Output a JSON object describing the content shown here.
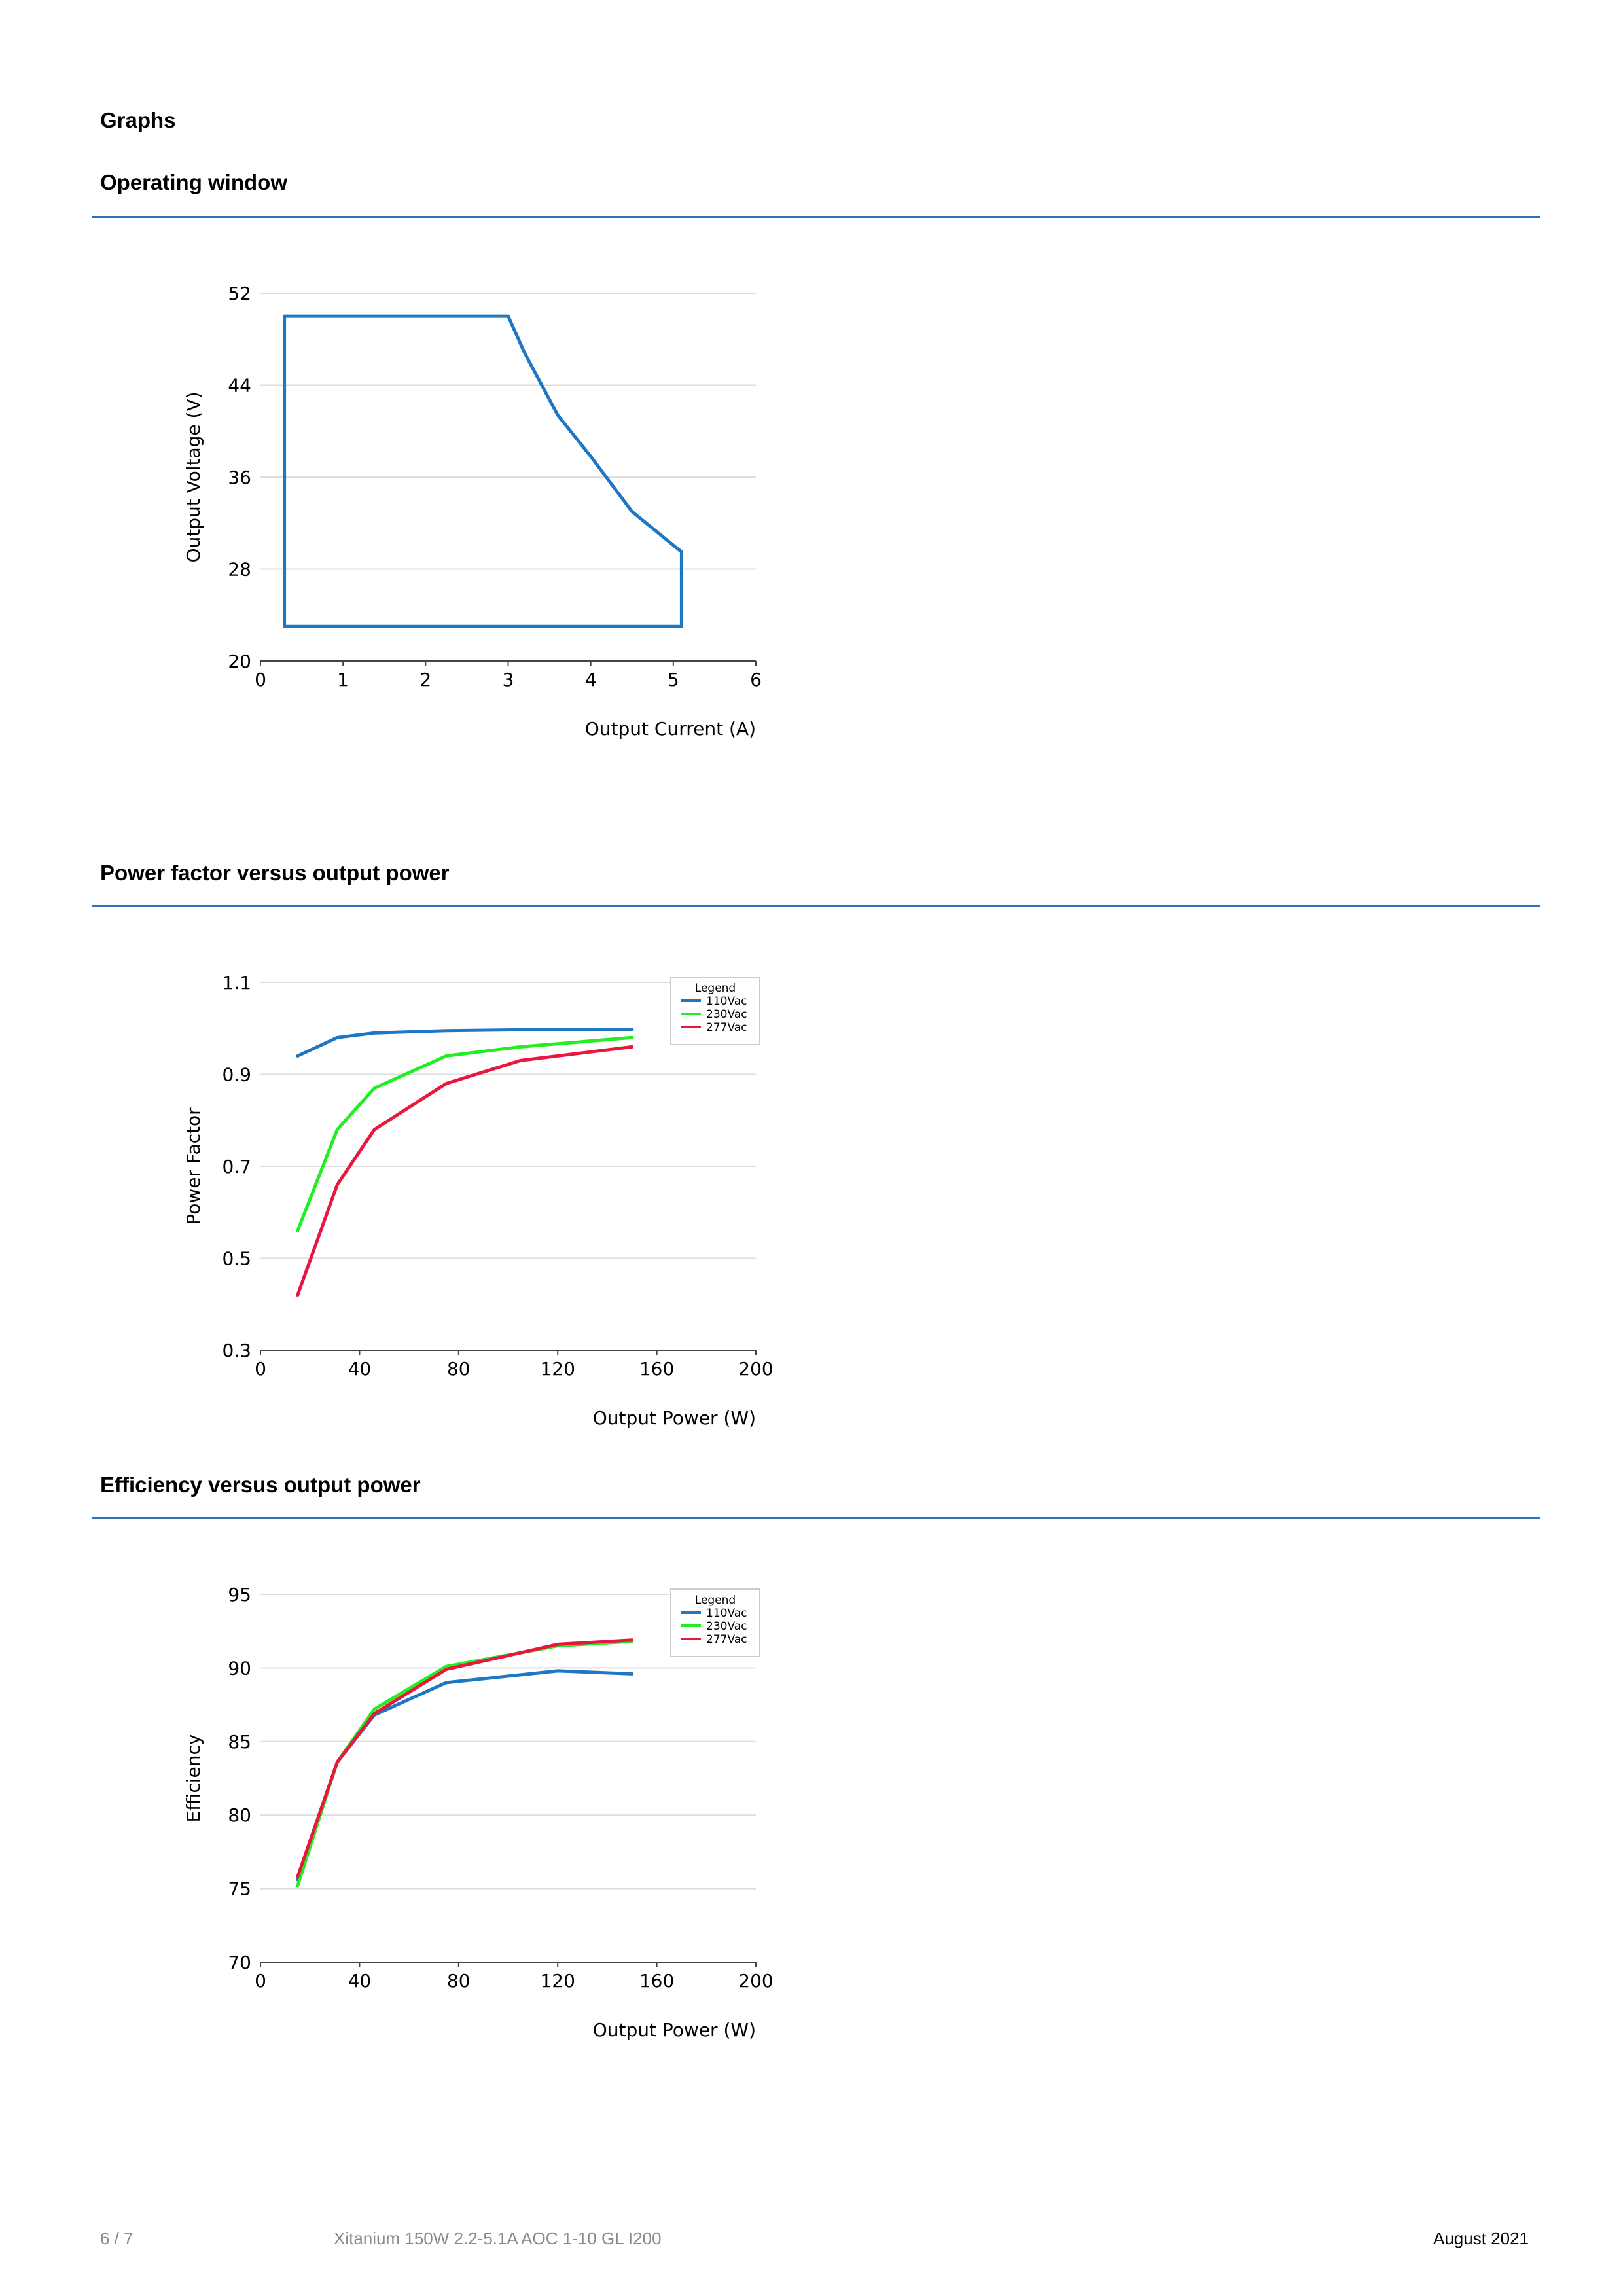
{
  "headings": {
    "graphs": "Graphs",
    "operating_window": "Operating window",
    "power_factor": "Power factor versus output power",
    "efficiency": "Efficiency versus output power"
  },
  "footer": {
    "page": "6 / 7",
    "product": "Xitanium 150W 2.2-5.1A AOC 1-10 GL I200",
    "date": "August 2021"
  },
  "colors": {
    "rule": "#2f6fb5",
    "s110": "#1f77c4",
    "s230": "#22ee22",
    "s277": "#e8173f"
  },
  "chart_data": [
    {
      "type": "line",
      "title": "Operating window",
      "xlabel": "Output Current (A)",
      "ylabel": "Output Voltage (V)",
      "xlim": [
        0,
        6
      ],
      "ylim": [
        20,
        52
      ],
      "xticks": [
        "0",
        "1",
        "2",
        "3",
        "4",
        "5",
        "6"
      ],
      "yticks": [
        "20",
        "28",
        "36",
        "44",
        "52"
      ],
      "legend": null,
      "series": [
        {
          "name": "Operating window",
          "color": "#1f77c4",
          "x": [
            0.29,
            3.0,
            3.2,
            3.6,
            4.0,
            4.5,
            5.1,
            5.1,
            0.29,
            0.29
          ],
          "y": [
            50,
            50,
            46.8,
            41.4,
            37.8,
            33.0,
            29.5,
            23.0,
            23.0,
            50
          ]
        }
      ]
    },
    {
      "type": "line",
      "title": "Power factor versus output power",
      "xlabel": "Output Power (W)",
      "ylabel": "Power Factor",
      "xlim": [
        0,
        200
      ],
      "ylim": [
        0.3,
        1.1
      ],
      "xticks": [
        "0",
        "40",
        "80",
        "120",
        "160",
        "200"
      ],
      "yticks": [
        "0.3",
        "0.5",
        "0.7",
        "0.9",
        "1.1"
      ],
      "legend": {
        "title": "Legend",
        "position": "top-right"
      },
      "series": [
        {
          "name": "110Vac",
          "color": "#1f77c4",
          "x": [
            15,
            31,
            46,
            75,
            105,
            150
          ],
          "y": [
            0.94,
            0.98,
            0.99,
            0.995,
            0.997,
            0.998
          ]
        },
        {
          "name": "230Vac",
          "color": "#22ee22",
          "x": [
            15,
            31,
            46,
            75,
            105,
            150
          ],
          "y": [
            0.56,
            0.78,
            0.87,
            0.94,
            0.96,
            0.98
          ]
        },
        {
          "name": "277Vac",
          "color": "#e8173f",
          "x": [
            15,
            31,
            46,
            75,
            105,
            150
          ],
          "y": [
            0.42,
            0.66,
            0.78,
            0.88,
            0.93,
            0.96
          ]
        }
      ]
    },
    {
      "type": "line",
      "title": "Efficiency versus output power",
      "xlabel": "Output Power (W)",
      "ylabel": "Efficiency",
      "xlim": [
        0,
        200
      ],
      "ylim": [
        70,
        95
      ],
      "xticks": [
        "0",
        "40",
        "80",
        "120",
        "160",
        "200"
      ],
      "yticks": [
        "70",
        "75",
        "80",
        "85",
        "90",
        "95"
      ],
      "legend": {
        "title": "Legend",
        "position": "top-right"
      },
      "series": [
        {
          "name": "110Vac",
          "color": "#1f77c4",
          "x": [
            15,
            31,
            46,
            75,
            120,
            150
          ],
          "y": [
            75.6,
            83.6,
            86.8,
            89.0,
            89.8,
            89.6
          ]
        },
        {
          "name": "230Vac",
          "color": "#22ee22",
          "x": [
            15,
            31,
            46,
            75,
            120,
            150
          ],
          "y": [
            75.2,
            83.6,
            87.2,
            90.1,
            91.5,
            91.8
          ]
        },
        {
          "name": "277Vac",
          "color": "#e8173f",
          "x": [
            15,
            31,
            46,
            75,
            120,
            150
          ],
          "y": [
            75.8,
            83.6,
            86.9,
            89.9,
            91.6,
            91.9
          ]
        }
      ]
    }
  ]
}
